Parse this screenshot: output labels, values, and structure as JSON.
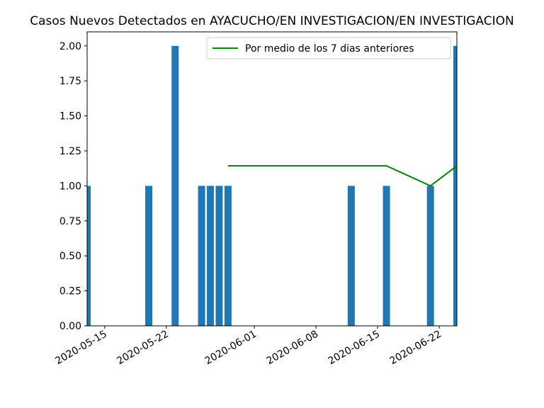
{
  "chart_data": {
    "type": "bar",
    "title": "Casos Nuevos Detectados en AYACUCHO/EN INVESTIGACION/EN INVESTIGACION",
    "xlabel": "",
    "ylabel": "",
    "xlim": [
      "2020-05-13",
      "2020-06-24"
    ],
    "ylim": [
      0,
      2.1
    ],
    "grid": false,
    "legend_position": "top-right",
    "x_ticks": [
      "2020-05-15",
      "2020-05-22",
      "2020-06-01",
      "2020-06-08",
      "2020-06-15",
      "2020-06-22"
    ],
    "y_ticks": [
      "0.00",
      "0.25",
      "0.50",
      "0.75",
      "1.00",
      "1.25",
      "1.50",
      "1.75",
      "2.00"
    ],
    "bars": {
      "color": "#1f77b4",
      "dates": [
        "2020-05-13",
        "2020-05-20",
        "2020-05-23",
        "2020-05-26",
        "2020-05-27",
        "2020-05-28",
        "2020-05-29",
        "2020-06-12",
        "2020-06-16",
        "2020-06-21",
        "2020-06-24"
      ],
      "values": [
        1,
        1,
        2,
        1,
        1,
        1,
        1,
        1,
        1,
        1,
        2
      ]
    },
    "series": [
      {
        "name": "Por medio de los 7 dias anteriores",
        "color": "#008000",
        "x": [
          "2020-05-29",
          "2020-06-16",
          "2020-06-21",
          "2020-06-24"
        ],
        "values": [
          1.142857,
          1.142857,
          1.0,
          1.142857
        ]
      }
    ]
  }
}
